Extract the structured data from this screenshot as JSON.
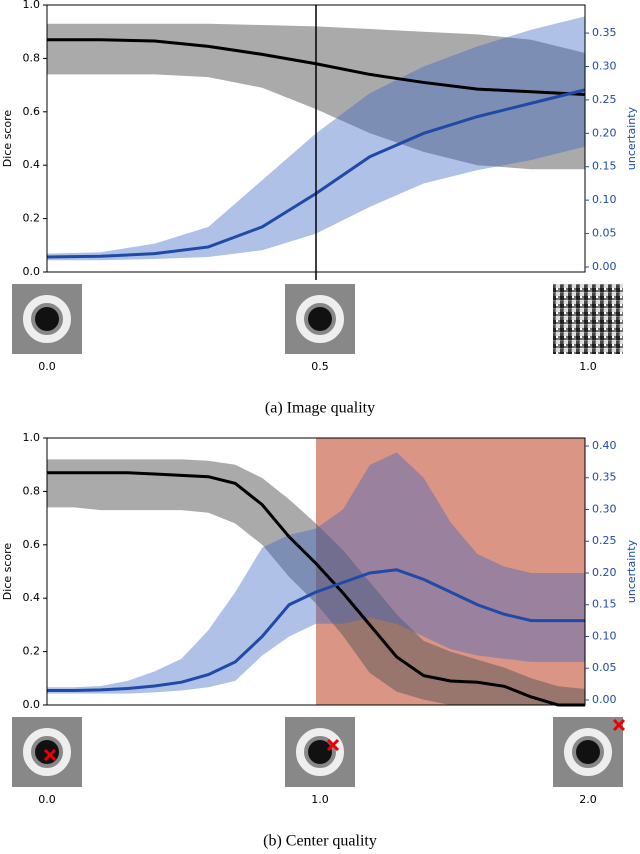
{
  "chart_data": [
    {
      "type": "line",
      "y_label": "Dice score",
      "y2_label": "uncertainty",
      "caption": "(a) Image quality",
      "image_labels": [
        "0.0",
        "0.5",
        "1.0"
      ],
      "xlim": [
        0,
        1
      ],
      "ylim": [
        0,
        1
      ],
      "yticks": [
        {
          "value": 0,
          "label": "0.0"
        },
        0.2,
        0.4,
        0.6,
        0.8,
        {
          "value": 1,
          "label": "1.0"
        }
      ],
      "y2lim": [
        -0.0075,
        0.392
      ],
      "y2ticks": [
        {
          "value": 0,
          "label": "0.00"
        },
        0.05,
        {
          "value": 0.1,
          "label": "0.10"
        },
        0.15,
        {
          "value": 0.2,
          "label": "0.20"
        },
        0.25,
        {
          "value": 0.3,
          "label": "0.30"
        },
        0.35
      ],
      "marker_x": 0.5,
      "x": [
        0,
        0.1,
        0.2,
        0.3,
        0.4,
        0.5,
        0.6,
        0.7,
        0.8,
        0.9,
        1.0
      ],
      "series": [
        {
          "color": "#000000",
          "axis": "y",
          "values": [
            0.87,
            0.87,
            0.865,
            0.845,
            0.815,
            0.78,
            0.74,
            0.71,
            0.685,
            0.675,
            0.665
          ],
          "upper": [
            0.93,
            0.93,
            0.93,
            0.93,
            0.925,
            0.92,
            0.91,
            0.9,
            0.89,
            0.87,
            0.82
          ],
          "lower": [
            0.74,
            0.74,
            0.74,
            0.73,
            0.69,
            0.61,
            0.52,
            0.45,
            0.4,
            0.385,
            0.385
          ]
        },
        {
          "color": "#1f4aa8",
          "axis": "y2",
          "values": [
            0.015,
            0.016,
            0.02,
            0.03,
            0.06,
            0.11,
            0.165,
            0.2,
            0.225,
            0.245,
            0.265
          ],
          "upper": [
            0.02,
            0.022,
            0.035,
            0.06,
            0.13,
            0.2,
            0.26,
            0.3,
            0.33,
            0.355,
            0.375
          ],
          "lower": [
            0.01,
            0.01,
            0.012,
            0.015,
            0.025,
            0.05,
            0.09,
            0.125,
            0.145,
            0.16,
            0.18
          ]
        }
      ]
    },
    {
      "type": "line",
      "y_label": "Dice score",
      "y2_label": "uncertainty",
      "caption": "(b) Center quality",
      "image_labels": [
        "0.0",
        "1.0",
        "2.0"
      ],
      "xlim": [
        0,
        2
      ],
      "ylim": [
        0,
        1
      ],
      "yticks": [
        {
          "value": 0,
          "label": "0.0"
        },
        0.2,
        0.4,
        0.6,
        0.8,
        {
          "value": 1,
          "label": "1.0"
        }
      ],
      "y2lim": [
        -0.0079,
        0.4126
      ],
      "y2ticks": [
        {
          "value": 0,
          "label": "0.00"
        },
        0.05,
        {
          "value": 0.1,
          "label": "0.10"
        },
        0.15,
        {
          "value": 0.2,
          "label": "0.20"
        },
        0.25,
        {
          "value": 0.3,
          "label": "0.30"
        },
        0.35,
        {
          "value": 0.4,
          "label": "0.40"
        }
      ],
      "highlight_range": [
        1.0,
        2.0
      ],
      "x": [
        0,
        0.1,
        0.2,
        0.3,
        0.4,
        0.5,
        0.6,
        0.7,
        0.8,
        0.9,
        1.0,
        1.1,
        1.2,
        1.3,
        1.4,
        1.5,
        1.6,
        1.7,
        1.8,
        1.9,
        2.0
      ],
      "series": [
        {
          "color": "#000000",
          "axis": "y",
          "values": [
            0.87,
            0.87,
            0.87,
            0.87,
            0.865,
            0.86,
            0.855,
            0.83,
            0.75,
            0.63,
            0.53,
            0.42,
            0.3,
            0.18,
            0.11,
            0.09,
            0.085,
            0.07,
            0.03,
            0.0,
            0.0
          ],
          "upper": [
            0.92,
            0.92,
            0.92,
            0.92,
            0.92,
            0.92,
            0.915,
            0.9,
            0.85,
            0.77,
            0.68,
            0.58,
            0.46,
            0.34,
            0.24,
            0.2,
            0.17,
            0.14,
            0.1,
            0.07,
            0.06
          ],
          "lower": [
            0.74,
            0.74,
            0.73,
            0.73,
            0.73,
            0.73,
            0.72,
            0.68,
            0.6,
            0.48,
            0.38,
            0.26,
            0.12,
            0.05,
            0.02,
            0.0,
            0.0,
            0.0,
            0.0,
            0.0,
            0.0
          ]
        },
        {
          "color": "#1f4aa8",
          "axis": "y2",
          "values": [
            0.015,
            0.015,
            0.016,
            0.018,
            0.022,
            0.028,
            0.04,
            0.06,
            0.1,
            0.15,
            0.17,
            0.185,
            0.2,
            0.205,
            0.19,
            0.17,
            0.15,
            0.135,
            0.125,
            0.125,
            0.125
          ],
          "upper": [
            0.02,
            0.02,
            0.022,
            0.03,
            0.045,
            0.065,
            0.11,
            0.17,
            0.24,
            0.26,
            0.27,
            0.3,
            0.37,
            0.39,
            0.35,
            0.28,
            0.23,
            0.21,
            0.2,
            0.2,
            0.2
          ],
          "lower": [
            0.01,
            0.01,
            0.01,
            0.01,
            0.012,
            0.015,
            0.02,
            0.03,
            0.07,
            0.1,
            0.12,
            0.12,
            0.13,
            0.12,
            0.1,
            0.08,
            0.07,
            0.065,
            0.06,
            0.06,
            0.06
          ]
        }
      ]
    }
  ]
}
